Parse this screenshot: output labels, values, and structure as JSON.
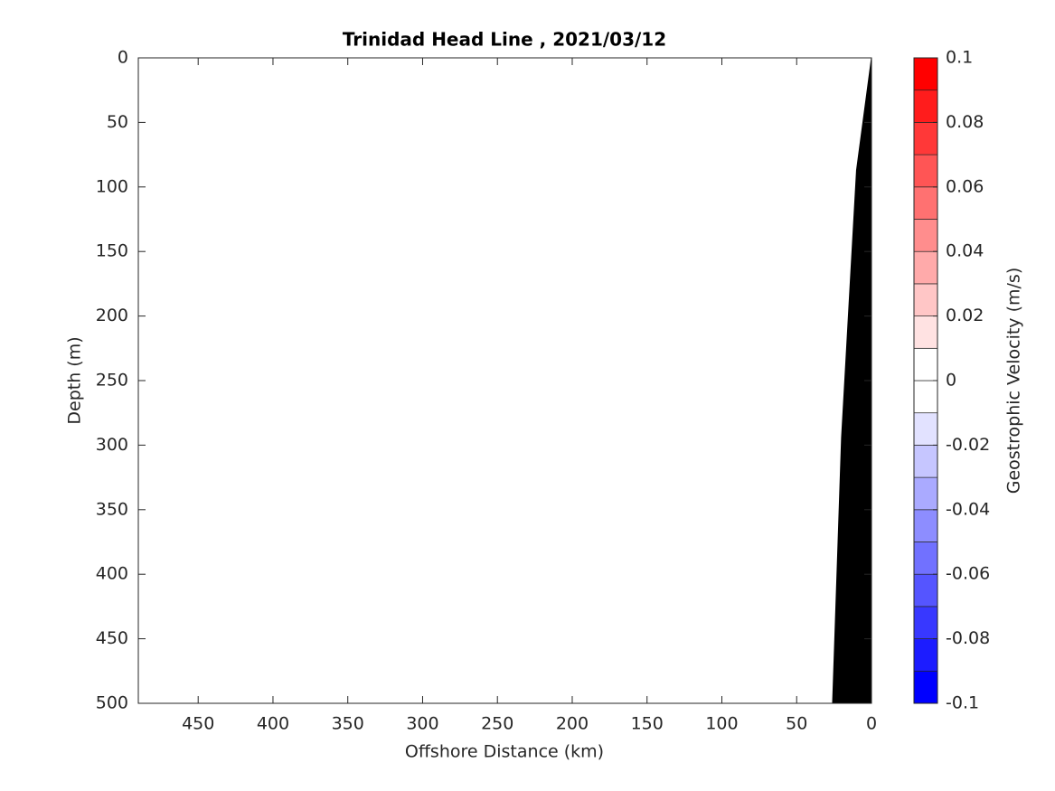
{
  "chart_data": {
    "type": "contour",
    "title": "Trinidad Head Line , 2021/03/12",
    "x_label": "Offshore Distance (km)",
    "y_label": "Depth (m)",
    "x": [
      0,
      10,
      20,
      26
    ],
    "values": [
      0,
      87,
      294,
      500
    ],
    "color": "#000000",
    "xlim": [
      490,
      0
    ],
    "xticks": [
      450,
      400,
      350,
      300,
      250,
      200,
      150,
      100,
      50,
      0
    ],
    "ylim": [
      0,
      500
    ],
    "yticks": [
      0,
      50,
      100,
      150,
      200,
      250,
      300,
      350,
      400,
      450,
      500
    ],
    "y_reversed": true,
    "colorbar": {
      "label": "Geostrophic Velocity (m/s)",
      "lim": [
        -0.1,
        0.1
      ],
      "ticks": [
        -0.1,
        -0.08,
        -0.06,
        -0.04,
        -0.02,
        0,
        0.02,
        0.04,
        0.06,
        0.08,
        0.1
      ],
      "colors": [
        "#0000ff",
        "#1c1cff",
        "#3838ff",
        "#5555ff",
        "#7171ff",
        "#8d8dff",
        "#aaaaff",
        "#c6c6ff",
        "#e2e2ff",
        "#ffffff",
        "#ffffff",
        "#ffe2e2",
        "#ffc6c6",
        "#ffaaaa",
        "#ff8d8d",
        "#ff7171",
        "#ff5555",
        "#ff3838",
        "#ff1c1c",
        "#ff0000"
      ]
    }
  }
}
